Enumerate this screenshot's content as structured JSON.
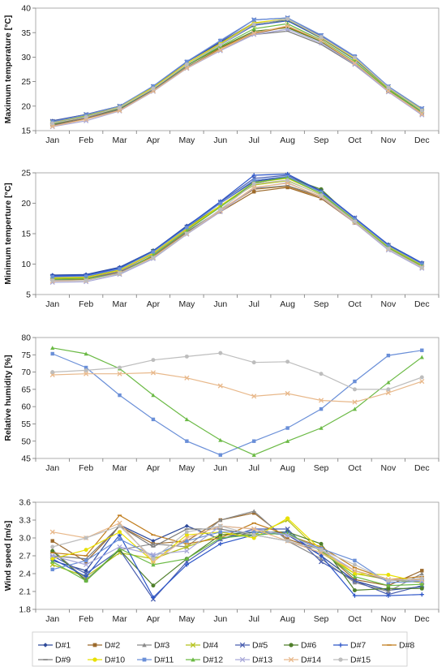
{
  "months": [
    "Jan",
    "Feb",
    "Mar",
    "Apr",
    "May",
    "Jun",
    "Jul",
    "Aug",
    "Sep",
    "Oct",
    "Nov",
    "Dec"
  ],
  "series_styles": [
    {
      "name": "D#1",
      "color": "#2E4A9A",
      "marker": "diamond"
    },
    {
      "name": "D#2",
      "color": "#9C6A2C",
      "marker": "square"
    },
    {
      "name": "D#3",
      "color": "#8A8A8A",
      "marker": "triangle"
    },
    {
      "name": "D#4",
      "color": "#B5C21A",
      "marker": "x"
    },
    {
      "name": "D#5",
      "color": "#4A5FB0",
      "marker": "x"
    },
    {
      "name": "D#6",
      "color": "#4F7F2A",
      "marker": "circle"
    },
    {
      "name": "D#7",
      "color": "#2D56C8",
      "marker": "plus"
    },
    {
      "name": "D#8",
      "color": "#C07C1C",
      "marker": "dash"
    },
    {
      "name": "D#9",
      "color": "#7C7C7C",
      "marker": "dash"
    },
    {
      "name": "D#10",
      "color": "#E8E000",
      "marker": "circle"
    },
    {
      "name": "D#11",
      "color": "#6A8FD8",
      "marker": "square"
    },
    {
      "name": "D#12",
      "color": "#6BBA45",
      "marker": "triangle"
    },
    {
      "name": "D#13",
      "color": "#A9A9D9",
      "marker": "x"
    },
    {
      "name": "D#14",
      "color": "#E8B88A",
      "marker": "x"
    },
    {
      "name": "D#15",
      "color": "#BDBDBD",
      "marker": "circle"
    }
  ],
  "chart_data": [
    {
      "type": "line",
      "ylabel": "Maximum temperature [°C]",
      "ylim": [
        15,
        40
      ],
      "yticks": [
        15,
        20,
        25,
        30,
        35,
        40
      ],
      "legend": "none",
      "series": [
        {
          "name": "D#1",
          "values": [
            17.0,
            18.3,
            20.0,
            24.0,
            29.0,
            33.0,
            37.0,
            37.5,
            34.0,
            30.0,
            24.0,
            19.5
          ]
        },
        {
          "name": "D#2",
          "values": [
            16.2,
            17.8,
            19.3,
            23.2,
            28.0,
            31.5,
            34.8,
            36.2,
            33.2,
            28.7,
            23.0,
            18.5
          ]
        },
        {
          "name": "D#3",
          "values": [
            16.8,
            18.2,
            19.8,
            23.8,
            28.6,
            32.6,
            36.8,
            37.8,
            34.2,
            29.6,
            23.8,
            19.2
          ]
        },
        {
          "name": "D#4",
          "values": [
            16.7,
            18.0,
            19.8,
            23.6,
            28.5,
            32.5,
            36.5,
            37.5,
            33.8,
            29.5,
            23.6,
            19.0
          ]
        },
        {
          "name": "D#5",
          "values": [
            16.9,
            18.3,
            20.0,
            24.0,
            29.0,
            33.2,
            37.6,
            38.0,
            34.4,
            30.0,
            24.0,
            19.5
          ]
        },
        {
          "name": "D#6",
          "values": [
            16.3,
            17.9,
            19.5,
            23.5,
            28.3,
            32.0,
            35.3,
            36.0,
            33.2,
            28.8,
            23.3,
            18.8
          ]
        },
        {
          "name": "D#7",
          "values": [
            16.6,
            18.0,
            19.7,
            23.7,
            28.5,
            32.5,
            36.5,
            37.4,
            33.9,
            29.5,
            23.8,
            19.1
          ]
        },
        {
          "name": "D#8",
          "values": [
            16.0,
            17.5,
            19.2,
            23.2,
            27.9,
            31.8,
            35.0,
            36.2,
            33.4,
            28.6,
            23.0,
            18.5
          ]
        },
        {
          "name": "D#9",
          "values": [
            16.1,
            17.6,
            19.3,
            23.3,
            28.0,
            31.5,
            34.6,
            35.3,
            32.6,
            28.4,
            23.0,
            18.4
          ]
        },
        {
          "name": "D#10",
          "values": [
            16.7,
            18.1,
            19.9,
            23.8,
            28.7,
            32.8,
            37.0,
            37.8,
            34.0,
            29.7,
            23.8,
            19.3
          ]
        },
        {
          "name": "D#11",
          "values": [
            16.8,
            18.2,
            20.0,
            24.1,
            29.1,
            33.4,
            37.6,
            38.0,
            34.5,
            30.2,
            24.0,
            19.5
          ]
        },
        {
          "name": "D#12",
          "values": [
            16.4,
            17.9,
            19.6,
            23.6,
            28.4,
            32.2,
            35.8,
            36.8,
            33.5,
            29.1,
            23.4,
            18.9
          ]
        },
        {
          "name": "D#13",
          "values": [
            15.8,
            17.0,
            19.0,
            23.0,
            27.7,
            31.3,
            34.6,
            35.7,
            32.9,
            28.5,
            22.9,
            18.2
          ]
        },
        {
          "name": "D#14",
          "values": [
            15.9,
            17.3,
            19.1,
            23.1,
            27.8,
            31.5,
            34.9,
            36.4,
            33.4,
            28.8,
            23.1,
            18.4
          ]
        },
        {
          "name": "D#15",
          "values": [
            16.5,
            17.8,
            19.7,
            23.6,
            28.5,
            32.5,
            36.7,
            37.8,
            34.1,
            29.9,
            23.8,
            19.1
          ]
        }
      ]
    },
    {
      "type": "line",
      "ylabel": "Minimum temperture [°C]",
      "ylim": [
        5,
        25
      ],
      "yticks": [
        5,
        10,
        15,
        20,
        25
      ],
      "legend": "none",
      "series": [
        {
          "name": "D#1",
          "values": [
            8.2,
            8.3,
            9.5,
            12.2,
            16.3,
            20.0,
            23.6,
            24.3,
            22.0,
            17.5,
            13.2,
            10.2
          ]
        },
        {
          "name": "D#2",
          "values": [
            7.4,
            7.6,
            8.7,
            11.4,
            15.3,
            18.6,
            21.9,
            22.6,
            20.8,
            16.8,
            12.6,
            9.7
          ]
        },
        {
          "name": "D#3",
          "values": [
            7.6,
            7.7,
            8.9,
            11.7,
            15.7,
            19.4,
            23.3,
            24.3,
            21.9,
            17.3,
            12.9,
            9.8
          ]
        },
        {
          "name": "D#4",
          "values": [
            7.8,
            7.9,
            9.0,
            11.8,
            15.8,
            19.5,
            23.0,
            23.7,
            21.4,
            17.1,
            12.8,
            9.9
          ]
        },
        {
          "name": "D#5",
          "values": [
            8.0,
            8.1,
            9.3,
            12.1,
            16.1,
            20.2,
            24.1,
            24.6,
            22.0,
            17.6,
            13.1,
            10.1
          ]
        },
        {
          "name": "D#6",
          "values": [
            7.5,
            7.8,
            9.2,
            12.2,
            16.0,
            19.6,
            23.3,
            24.3,
            22.3,
            17.2,
            13.1,
            9.9
          ]
        },
        {
          "name": "D#7",
          "values": [
            8.1,
            8.2,
            9.4,
            12.2,
            16.2,
            20.3,
            24.6,
            24.8,
            22.0,
            17.6,
            13.2,
            10.2
          ]
        },
        {
          "name": "D#8",
          "values": [
            7.3,
            7.5,
            8.6,
            11.3,
            15.2,
            18.8,
            22.3,
            22.8,
            21.0,
            16.9,
            12.6,
            9.6
          ]
        },
        {
          "name": "D#9",
          "values": [
            7.4,
            7.6,
            8.7,
            11.4,
            15.3,
            18.9,
            22.4,
            22.9,
            21.1,
            17.0,
            12.7,
            9.7
          ]
        },
        {
          "name": "D#10",
          "values": [
            7.7,
            7.8,
            9.0,
            11.8,
            15.8,
            19.6,
            23.4,
            24.1,
            21.6,
            17.2,
            12.9,
            9.9
          ]
        },
        {
          "name": "D#11",
          "values": [
            7.9,
            8.0,
            9.2,
            12.0,
            16.0,
            20.0,
            23.8,
            24.4,
            21.8,
            17.4,
            13.0,
            10.0
          ]
        },
        {
          "name": "D#12",
          "values": [
            7.5,
            7.6,
            8.4,
            11.5,
            15.5,
            19.4,
            23.4,
            24.2,
            21.6,
            17.1,
            12.7,
            9.7
          ]
        },
        {
          "name": "D#13",
          "values": [
            7.0,
            7.1,
            8.3,
            10.9,
            14.9,
            18.6,
            22.5,
            23.4,
            21.0,
            16.8,
            12.3,
            9.3
          ]
        },
        {
          "name": "D#14",
          "values": [
            7.2,
            7.3,
            8.5,
            11.1,
            15.0,
            18.8,
            22.6,
            23.3,
            21.1,
            16.9,
            12.5,
            9.5
          ]
        },
        {
          "name": "D#15",
          "values": [
            7.3,
            7.3,
            8.5,
            11.0,
            15.0,
            19.0,
            23.2,
            23.8,
            21.3,
            17.0,
            12.5,
            9.4
          ]
        }
      ]
    },
    {
      "type": "line",
      "ylabel": "Relative humidity [%]",
      "ylim": [
        45,
        80
      ],
      "yticks": [
        45,
        50,
        55,
        60,
        65,
        70,
        75,
        80
      ],
      "legend": "none",
      "series": [
        {
          "name": "D#11",
          "values": [
            75.3,
            71.3,
            63.3,
            56.3,
            50.0,
            46.0,
            50.0,
            53.8,
            59.3,
            67.3,
            74.8,
            76.3
          ]
        },
        {
          "name": "D#12",
          "values": [
            77.0,
            75.3,
            71.0,
            63.3,
            56.3,
            50.3,
            46.0,
            50.0,
            53.8,
            59.3,
            67.0,
            74.3
          ]
        },
        {
          "name": "D#14",
          "values": [
            69.2,
            69.5,
            69.5,
            69.8,
            68.3,
            66.0,
            63.0,
            63.8,
            61.8,
            61.3,
            64.0,
            67.3
          ]
        },
        {
          "name": "D#15",
          "values": [
            70.0,
            70.5,
            71.3,
            73.5,
            74.5,
            75.5,
            72.8,
            73.0,
            69.5,
            65.0,
            65.0,
            68.5
          ]
        }
      ]
    },
    {
      "type": "line",
      "ylabel": "Wind speed [m/s]",
      "ylim": [
        1.8,
        3.6
      ],
      "yticks": [
        1.8,
        2.1,
        2.4,
        2.7,
        3.0,
        3.3,
        3.6
      ],
      "legend": "bottom",
      "series": [
        {
          "name": "D#1",
          "values": [
            2.62,
            2.45,
            3.22,
            2.95,
            3.2,
            2.98,
            3.1,
            3.05,
            2.7,
            2.28,
            2.12,
            2.18
          ]
        },
        {
          "name": "D#2",
          "values": [
            2.95,
            2.6,
            3.2,
            2.9,
            2.95,
            3.3,
            3.42,
            2.98,
            2.8,
            2.3,
            2.2,
            2.45
          ]
        },
        {
          "name": "D#3",
          "values": [
            2.8,
            2.3,
            2.8,
            2.9,
            2.85,
            3.3,
            3.45,
            2.95,
            2.65,
            2.25,
            2.1,
            2.4
          ]
        },
        {
          "name": "D#4",
          "values": [
            2.55,
            2.35,
            2.75,
            2.65,
            2.85,
            3.05,
            3.05,
            3.3,
            2.75,
            2.4,
            2.3,
            2.25
          ]
        },
        {
          "name": "D#5",
          "values": [
            2.7,
            2.4,
            2.8,
            1.97,
            2.6,
            2.98,
            3.15,
            3.15,
            2.6,
            2.28,
            2.05,
            2.2
          ]
        },
        {
          "name": "D#6",
          "values": [
            2.78,
            2.28,
            2.8,
            2.2,
            2.65,
            3.05,
            3.1,
            3.1,
            2.9,
            2.12,
            2.15,
            2.15
          ]
        },
        {
          "name": "D#7",
          "values": [
            2.65,
            2.35,
            3.05,
            2.0,
            2.55,
            2.9,
            3.05,
            3.1,
            2.7,
            2.03,
            2.03,
            2.05
          ]
        },
        {
          "name": "D#8",
          "values": [
            2.75,
            2.7,
            3.38,
            3.05,
            2.9,
            3.0,
            3.25,
            3.05,
            2.85,
            2.5,
            2.3,
            2.35
          ]
        },
        {
          "name": "D#9",
          "values": [
            2.7,
            2.65,
            3.2,
            2.85,
            3.15,
            3.15,
            3.05,
            2.95,
            2.75,
            2.45,
            2.28,
            2.3
          ]
        },
        {
          "name": "D#10",
          "values": [
            2.65,
            2.8,
            3.1,
            2.6,
            3.05,
            3.1,
            3.0,
            3.33,
            2.8,
            2.4,
            2.38,
            2.25
          ]
        },
        {
          "name": "D#11",
          "values": [
            2.47,
            2.62,
            2.98,
            2.7,
            2.95,
            3.1,
            3.1,
            3.05,
            2.82,
            2.62,
            2.25,
            2.27
          ]
        },
        {
          "name": "D#12",
          "values": [
            2.6,
            2.28,
            2.82,
            2.55,
            2.65,
            3.0,
            3.05,
            3.08,
            2.78,
            2.35,
            2.2,
            2.22
          ]
        },
        {
          "name": "D#13",
          "values": [
            2.7,
            2.55,
            2.85,
            2.72,
            2.78,
            3.2,
            3.15,
            3.05,
            2.8,
            2.45,
            2.3,
            2.28
          ]
        },
        {
          "name": "D#14",
          "values": [
            3.1,
            3.0,
            3.25,
            2.6,
            3.0,
            3.2,
            3.15,
            2.95,
            2.75,
            2.45,
            2.3,
            2.3
          ]
        },
        {
          "name": "D#15",
          "values": [
            2.85,
            3.0,
            3.2,
            2.65,
            3.1,
            3.2,
            3.05,
            2.95,
            2.8,
            2.55,
            2.28,
            2.32
          ]
        }
      ]
    }
  ]
}
